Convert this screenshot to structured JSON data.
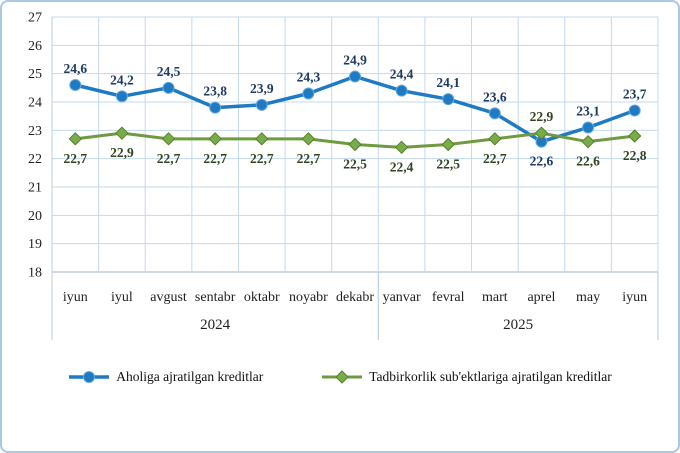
{
  "chart_data": {
    "type": "line",
    "title": "",
    "categories": [
      "iyun",
      "iyul",
      "avgust",
      "sentabr",
      "oktabr",
      "noyabr",
      "dekabr",
      "yanvar",
      "fevral",
      "mart",
      "aprel",
      "may",
      "iyun"
    ],
    "year_groups": [
      {
        "label": "2024",
        "span": 7
      },
      {
        "label": "2025",
        "span": 6
      }
    ],
    "ylim": [
      18,
      27
    ],
    "yticks": [
      27,
      26,
      25,
      24,
      23,
      22,
      21,
      20,
      19,
      18
    ],
    "grid": true,
    "legend_position": "bottom",
    "decimal_separator": ",",
    "series": [
      {
        "name": "Aholiga ajratilgan kreditlar",
        "marker": "circle",
        "color": "#1F7AC4",
        "marker_fill": "#1F7AC4",
        "marker_stroke": "#66A9DB",
        "label_color": "#1F3B63",
        "values": [
          24.6,
          24.2,
          24.5,
          23.8,
          23.9,
          24.3,
          24.9,
          24.4,
          24.1,
          23.6,
          22.6,
          23.1,
          23.7
        ],
        "labels": [
          "24,6",
          "24,2",
          "24,5",
          "23,8",
          "23,9",
          "24,3",
          "24,9",
          "24,4",
          "24,1",
          "23,6",
          "22,6",
          "23,1",
          "23,7"
        ],
        "label_positions": [
          "above",
          "above",
          "above",
          "above",
          "above",
          "above",
          "above",
          "above",
          "above",
          "above",
          "below",
          "above",
          "above"
        ]
      },
      {
        "name": "Tadbirkorlik sub'ektlariga ajratilgan kreditlar",
        "marker": "diamond",
        "color": "#6F9A3F",
        "marker_fill": "#79AC49",
        "marker_stroke": "#557F2B",
        "label_color": "#31441F",
        "values": [
          22.7,
          22.9,
          22.7,
          22.7,
          22.7,
          22.7,
          22.5,
          22.4,
          22.5,
          22.7,
          22.9,
          22.6,
          22.8
        ],
        "labels": [
          "22,7",
          "22,9",
          "22,7",
          "22,7",
          "22,7",
          "22,7",
          "22,5",
          "22,4",
          "22,5",
          "22,7",
          "22,9",
          "22,6",
          "22,8"
        ],
        "label_positions": [
          "below",
          "below",
          "below",
          "below",
          "below",
          "below",
          "below",
          "below",
          "below",
          "below",
          "above",
          "below",
          "below"
        ]
      }
    ],
    "colors": {
      "gridline": "#C3D9EE",
      "axis_bottom_line": "#9FB6CA",
      "axis_spine": "#B5CEE6",
      "group_divider": "#AFC7DD",
      "axis_text": "#1F1F1F",
      "frame_border": "#A9C8E6",
      "background": "#FFFFFF"
    }
  }
}
